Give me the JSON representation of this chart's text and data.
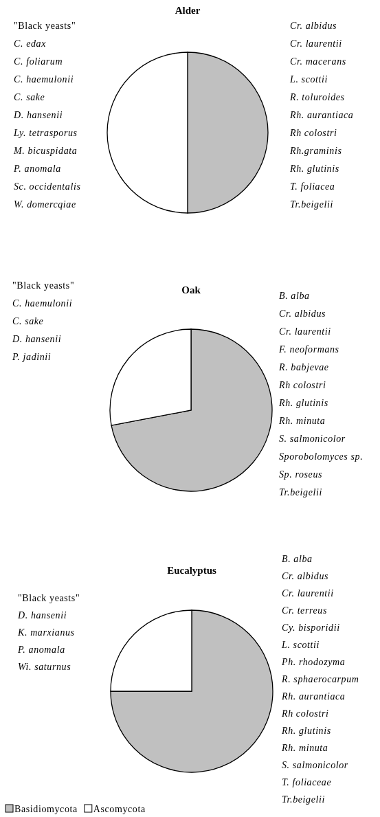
{
  "chart_data": [
    {
      "type": "pie",
      "title": "Alder",
      "categories": [
        null,
        null
      ],
      "values": [
        50,
        50
      ],
      "colors": [
        "#c0c0c0",
        "#ffffff"
      ],
      "legend": false,
      "annotations": [
        "\"Black yeasts\"\nC. edax\nC. foliarum\nC. haemulonii\nC. sake\nD. hansenii\nLy. tetrasporus\nM. bicuspidata\nP. anomala\nSc. occidentalis\nW. domercqiae",
        "Cr. albidus\nCr. laurentii\nCr. macerans\nL. scottii\nR. toluroides\nRh. aurantiaca\nRh colostri\nRh.graminis\nRh. glutinis\nT. foliacea\nTr.beigelii"
      ]
    },
    {
      "type": "pie",
      "title": "Oak",
      "categories": [
        null,
        null
      ],
      "values": [
        72,
        28
      ],
      "colors": [
        "#c0c0c0",
        "#ffffff"
      ],
      "legend": false,
      "annotations": [
        "\"Black yeasts\"\nC. haemulonii\nC. sake\nD. hansenii\nP. jadinii",
        "B. alba\nCr. albidus\nCr. laurentii\nF. neoformans\nR. babjevae\nRh colostri\nRh. glutinis\nRh. minuta\nS. salmonicolor\nSporobolomyces sp.\nSp. roseus\nTr.beigelii"
      ]
    },
    {
      "type": "pie",
      "title": "Eucalyptus",
      "categories": [
        "Basidiomycota",
        "Ascomycota"
      ],
      "values": [
        75,
        25
      ],
      "colors": [
        "#c0c0c0",
        "#ffffff"
      ],
      "legend": "bottom left",
      "annotations": [
        "\"Black yeasts\"\nD. hansenii\nK. marxianus\nP. anomala\nWi. saturnus",
        "B. alba\nCr. albidus\nCr. laurentii\nCr. terreus\nCy. bisporidii\nL. scottii\nPh. rhodozyma\nR. sphaerocarpum\nRh. aurantiaca\nRh colostri\nRh. glutinis\nRh. minuta\nS. salmonicolor\nT. foliaceae\nTr.beigelii"
      ]
    }
  ]
}
